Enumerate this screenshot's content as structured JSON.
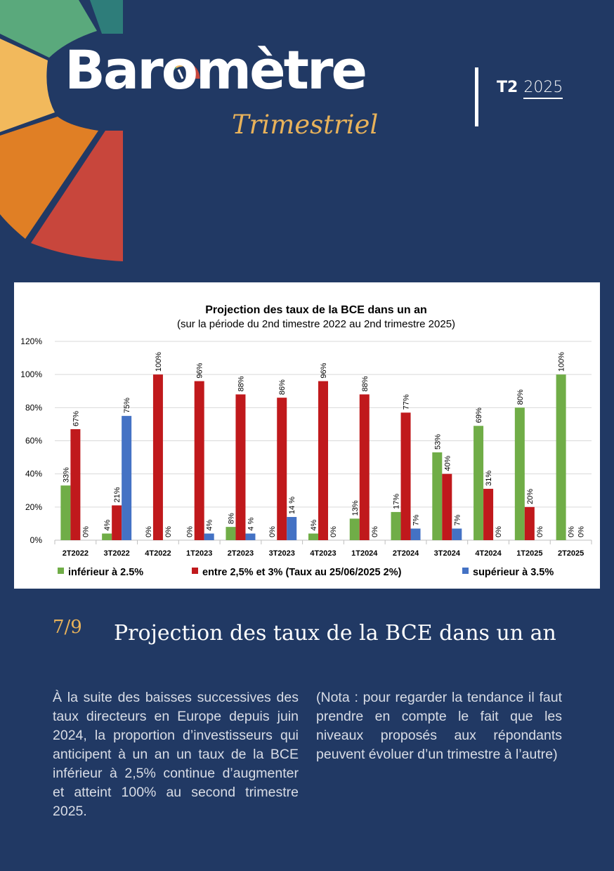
{
  "header": {
    "brand_title": "Barometre",
    "brand_title_display": "Baromètre",
    "brand_subtitle": "Trimestriel",
    "issue_quarter": "T2",
    "issue_year": "2025"
  },
  "colors": {
    "background": "#213964",
    "accent_gold": "#e8b25a",
    "series_green": "#70ad47",
    "series_red": "#c0191c",
    "series_blue": "#4472c4",
    "petal_teal": "#2e7d7a",
    "petal_green": "#5aa97c",
    "petal_yellow": "#f2b95c",
    "petal_orange": "#e07f25",
    "petal_red": "#c8463c"
  },
  "chart_data": {
    "type": "bar",
    "title": "Projection des taux de la BCE dans un an",
    "subtitle": "(sur la période du 2nd timestre 2022 au 2nd trimestre 2025)",
    "categories": [
      "2T2022",
      "3T2022",
      "4T2022",
      "1T2023",
      "2T2023",
      "3T2023",
      "4T2023",
      "1T2024",
      "2T2024",
      "3T2024",
      "4T2024",
      "1T2025",
      "2T2025"
    ],
    "ylim": [
      0,
      120
    ],
    "yticks": [
      "0%",
      "20%",
      "40%",
      "60%",
      "80%",
      "100%",
      "120%"
    ],
    "grid": true,
    "legend_position": "bottom",
    "series": [
      {
        "name": "inférieur à 2.5%",
        "color": "#70ad47",
        "values": [
          33,
          4,
          0,
          0,
          8,
          0,
          4,
          13,
          17,
          53,
          69,
          80,
          100
        ],
        "labels": [
          "33%",
          "4%",
          "0%",
          "0%",
          "8%",
          "0%",
          "4%",
          "13%",
          "17%",
          "53%",
          "69%",
          "80%",
          "100%"
        ]
      },
      {
        "name": "entre 2,5% et 3% (Taux au 25/06/2025 2%)",
        "color": "#c0191c",
        "values": [
          67,
          21,
          100,
          96,
          88,
          86,
          96,
          88,
          77,
          40,
          31,
          20,
          0
        ],
        "labels": [
          "67%",
          "21%",
          "100%",
          "96%",
          "88%",
          "86%",
          "96%",
          "88%",
          "77%",
          "40%",
          "31%",
          "20%",
          "0%"
        ]
      },
      {
        "name": "supérieur à 3.5%",
        "color": "#4472c4",
        "values": [
          0,
          75,
          0,
          4,
          4,
          14,
          0,
          0,
          7,
          7,
          0,
          0,
          0
        ],
        "labels": [
          "0%",
          "75%",
          "0%",
          "4%",
          "4 %",
          "14 %",
          "0%",
          "0%",
          "7%",
          "7%",
          "0%",
          "0%",
          "0%"
        ]
      }
    ]
  },
  "section": {
    "number": "7/9",
    "title": "Projection des taux de la BCE dans un an"
  },
  "body": {
    "left_paragraph": "À la suite des baisses successives des taux directeurs en Europe depuis juin 2024, la proportion d’investisseurs qui anticipent à un an un taux de la BCE inférieur à 2,5% continue d’augmenter et atteint 100% au second trimestre 2025.",
    "right_paragraph": "(Nota : pour regarder la tendance il faut prendre en compte le fait que les niveaux proposés aux répondants peuvent évoluer d’un trimestre à l’autre)"
  }
}
